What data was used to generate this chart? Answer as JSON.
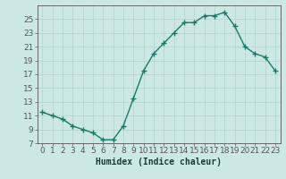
{
  "x": [
    0,
    1,
    2,
    3,
    4,
    5,
    6,
    7,
    8,
    9,
    10,
    11,
    12,
    13,
    14,
    15,
    16,
    17,
    18,
    19,
    20,
    21,
    22,
    23
  ],
  "y": [
    11.5,
    11.0,
    10.5,
    9.5,
    9.0,
    8.5,
    7.5,
    7.5,
    9.5,
    13.5,
    17.5,
    20.0,
    21.5,
    23.0,
    24.5,
    24.5,
    25.5,
    25.5,
    26.0,
    24.0,
    21.0,
    20.0,
    19.5,
    17.5
  ],
  "xlabel": "Humidex (Indice chaleur)",
  "line_color": "#1a7a6a",
  "marker_color": "#1a7a6a",
  "bg_color": "#cce8e4",
  "grid_color": "#afd4cf",
  "axis_color": "#555555",
  "ylim": [
    7,
    27
  ],
  "xlim": [
    -0.5,
    23.5
  ],
  "yticks": [
    7,
    9,
    11,
    13,
    15,
    17,
    19,
    21,
    23,
    25
  ],
  "xticks": [
    0,
    1,
    2,
    3,
    4,
    5,
    6,
    7,
    8,
    9,
    10,
    11,
    12,
    13,
    14,
    15,
    16,
    17,
    18,
    19,
    20,
    21,
    22,
    23
  ],
  "xtick_labels": [
    "0",
    "1",
    "2",
    "3",
    "4",
    "5",
    "6",
    "7",
    "8",
    "9",
    "10",
    "11",
    "12",
    "13",
    "14",
    "15",
    "16",
    "17",
    "18",
    "19",
    "20",
    "21",
    "22",
    "23"
  ],
  "marker_size": 4,
  "line_width": 1.0,
  "xlabel_fontsize": 7,
  "tick_fontsize": 6.5
}
